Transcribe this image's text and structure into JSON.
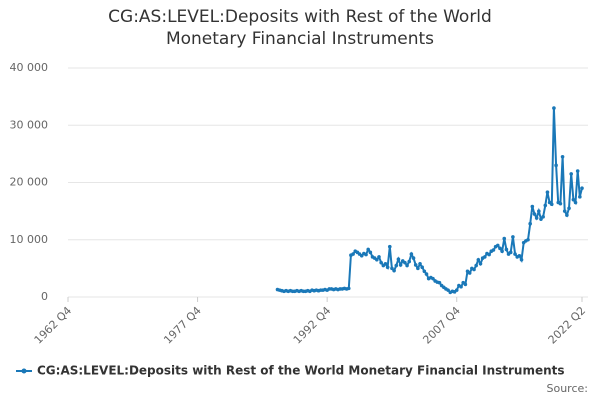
{
  "chart_data": {
    "type": "line",
    "title": "CG:AS:LEVEL:Deposits with Rest of the World Monetary Financial Instruments",
    "source": "Source:",
    "x": [
      1987,
      1987.25,
      1987.5,
      1987.75,
      1988,
      1988.25,
      1988.5,
      1988.75,
      1989,
      1989.25,
      1989.5,
      1989.75,
      1990,
      1990.25,
      1990.5,
      1990.75,
      1991,
      1991.25,
      1991.5,
      1991.75,
      1992,
      1992.25,
      1992.5,
      1992.75,
      1993,
      1993.25,
      1993.5,
      1993.75,
      1994,
      1994.25,
      1994.5,
      1994.75,
      1995,
      1995.25,
      1995.5,
      1995.75,
      1996,
      1996.25,
      1996.5,
      1996.75,
      1997,
      1997.25,
      1997.5,
      1997.75,
      1998,
      1998.25,
      1998.5,
      1998.75,
      1999,
      1999.25,
      1999.5,
      1999.75,
      2000,
      2000.25,
      2000.5,
      2000.75,
      2001,
      2001.25,
      2001.5,
      2001.75,
      2002,
      2002.25,
      2002.5,
      2002.75,
      2003,
      2003.25,
      2003.5,
      2003.75,
      2004,
      2004.25,
      2004.5,
      2004.75,
      2005,
      2005.25,
      2005.5,
      2005.75,
      2006,
      2006.25,
      2006.5,
      2006.75,
      2007,
      2007.25,
      2007.5,
      2007.75,
      2008,
      2008.25,
      2008.5,
      2008.75,
      2009,
      2009.25,
      2009.5,
      2009.75,
      2010,
      2010.25,
      2010.5,
      2010.75,
      2011,
      2011.25,
      2011.5,
      2011.75,
      2012,
      2012.25,
      2012.5,
      2012.75,
      2013,
      2013.25,
      2013.5,
      2013.75,
      2014,
      2014.25,
      2014.5,
      2014.75,
      2015,
      2015.25,
      2015.5,
      2015.75,
      2016,
      2016.25,
      2016.5,
      2016.75,
      2017,
      2017.25,
      2017.5,
      2017.75,
      2018,
      2018.25,
      2018.5,
      2018.75,
      2019,
      2019.25,
      2019.5,
      2019.75,
      2020,
      2020.25,
      2020.5,
      2020.75,
      2021,
      2021.25,
      2021.5,
      2021.75,
      2022,
      2022.25
    ],
    "series": [
      {
        "name": "CG:AS:LEVEL:Deposits with Rest of the World Monetary Financial Instruments",
        "color": "#1a78b8",
        "values": [
          1300,
          1200,
          1100,
          1000,
          1100,
          1000,
          1100,
          1000,
          1000,
          1100,
          1000,
          1100,
          1000,
          1000,
          1100,
          1000,
          1200,
          1100,
          1200,
          1100,
          1200,
          1200,
          1300,
          1200,
          1400,
          1400,
          1300,
          1400,
          1300,
          1400,
          1400,
          1500,
          1400,
          1500,
          7300,
          7500,
          8000,
          7800,
          7500,
          7200,
          7600,
          7400,
          8300,
          7800,
          7000,
          6800,
          6500,
          7000,
          6000,
          5500,
          5800,
          5200,
          8800,
          5000,
          4600,
          5500,
          6600,
          5600,
          6300,
          6000,
          5500,
          6200,
          7500,
          6800,
          5600,
          5000,
          5800,
          5200,
          4500,
          4000,
          3200,
          3400,
          3200,
          2800,
          2600,
          2500,
          2000,
          1700,
          1400,
          1200,
          800,
          1000,
          900,
          1200,
          2000,
          1800,
          2500,
          2200,
          4500,
          4200,
          5000,
          4800,
          5500,
          6500,
          5800,
          6800,
          7000,
          7600,
          7400,
          8000,
          8200,
          8800,
          9000,
          8500,
          8000,
          10200,
          8300,
          7500,
          7800,
          10500,
          7500,
          7000,
          7200,
          6500,
          9500,
          9800,
          10000,
          12800,
          15800,
          14500,
          13800,
          15000,
          13600,
          14000,
          16000,
          18300,
          16500,
          16200,
          33000,
          23000,
          16500,
          16300,
          24500,
          15000,
          14300,
          15500,
          21500,
          17000,
          16500,
          22000,
          17500,
          19000
        ]
      }
    ],
    "xlim": [
      1962.75,
      2022.25
    ],
    "xticks": [
      {
        "value": 1962.75,
        "label": "1962 Q4"
      },
      {
        "value": 1977.75,
        "label": "1977 Q4"
      },
      {
        "value": 1992.75,
        "label": "1992 Q4"
      },
      {
        "value": 2007.75,
        "label": "2007 Q4"
      },
      {
        "value": 2022.25,
        "label": "2022 Q2"
      }
    ],
    "ylim": [
      0,
      40000
    ],
    "yticks": [
      0,
      {
        "value": 10000,
        "label": "10 000"
      },
      {
        "value": 20000,
        "label": "20 000"
      },
      {
        "value": 30000,
        "label": "30 000"
      },
      {
        "value": 40000,
        "label": "40 000"
      }
    ],
    "grid": true
  }
}
